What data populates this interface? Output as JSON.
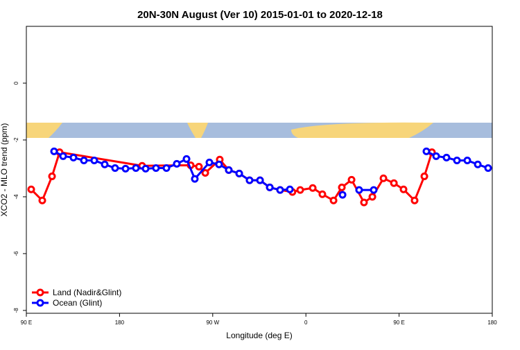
{
  "chart_data": {
    "type": "line",
    "title": "20N-30N August (Ver 10)   2015-01-01 to 2020-12-18",
    "x_label": "Longitude (deg E)",
    "y_label": "XCO2 - MLO trend (ppm)",
    "xlim": [
      90,
      540
    ],
    "xticks": [
      {
        "value": 90,
        "label": "90 E"
      },
      {
        "value": 180,
        "label": "180"
      },
      {
        "value": 270,
        "label": "90 W"
      },
      {
        "value": 360,
        "label": "0"
      },
      {
        "value": 450,
        "label": "90 E"
      },
      {
        "value": 540,
        "label": "180"
      }
    ],
    "ylim": [
      -8.1,
      2.0
    ],
    "yticks": [
      -8,
      -6,
      -4,
      -2,
      0
    ],
    "legend": "bottom-left",
    "series": [
      {
        "name": "Land (Nadir&Glint)",
        "color": "#ff0000",
        "x": [
          94.7,
          105.4,
          114.8,
          122.1,
          201.8,
          248.7,
          256.7,
          262.8,
          276.8,
          285.5,
          295.6,
          305.6,
          315.7,
          325.1,
          335.1,
          347,
          354.5,
          366.6,
          375.9,
          386.7,
          394.7,
          404.1,
          416.1,
          424.2,
          434.9,
          445,
          454.3,
          465,
          474.4,
          481.7
        ],
        "values": [
          -3.74,
          -4.13,
          -3.28,
          -2.43,
          -2.91,
          -2.89,
          -2.94,
          -3.16,
          -2.69,
          -3.06,
          -3.18,
          -3.42,
          -3.42,
          -3.67,
          -3.76,
          -3.83,
          -3.76,
          -3.69,
          -3.91,
          -4.13,
          -3.67,
          -3.4,
          -4.2,
          -4.0,
          -3.35,
          -3.52,
          -3.74,
          -4.13,
          -3.28,
          -2.43
        ]
      },
      {
        "name": "Ocean (Glint)",
        "color": "#0000ff",
        "x": [
          116.8,
          125.5,
          135.5,
          145.6,
          155.6,
          165.7,
          175.7,
          185.8,
          195.8,
          205.2,
          215.2,
          225.3,
          235.3,
          244.7,
          252.7,
          266.8,
          276.1,
          285.5,
          295.6,
          305.6,
          315.7,
          325.1,
          335.1,
          344.5,
          370,
          395.4,
          403,
          411.4,
          425.5,
          450,
          476.4,
          485.8,
          495.8,
          505.9,
          515.9,
          526,
          536
        ],
        "values": [
          -2.4,
          -2.57,
          -2.62,
          -2.72,
          -2.72,
          -2.86,
          -2.99,
          -3.01,
          -2.99,
          -3.01,
          -2.99,
          -2.99,
          -2.84,
          -2.67,
          -3.37,
          -2.79,
          -2.86,
          -3.06,
          -3.18,
          -3.42,
          -3.42,
          -3.67,
          -3.76,
          -3.74,
          null,
          -3.93,
          null,
          -3.76,
          -3.76,
          null,
          -2.4,
          -2.57,
          -2.62,
          -2.72,
          -2.72,
          -2.86,
          -2.99
        ]
      }
    ]
  }
}
